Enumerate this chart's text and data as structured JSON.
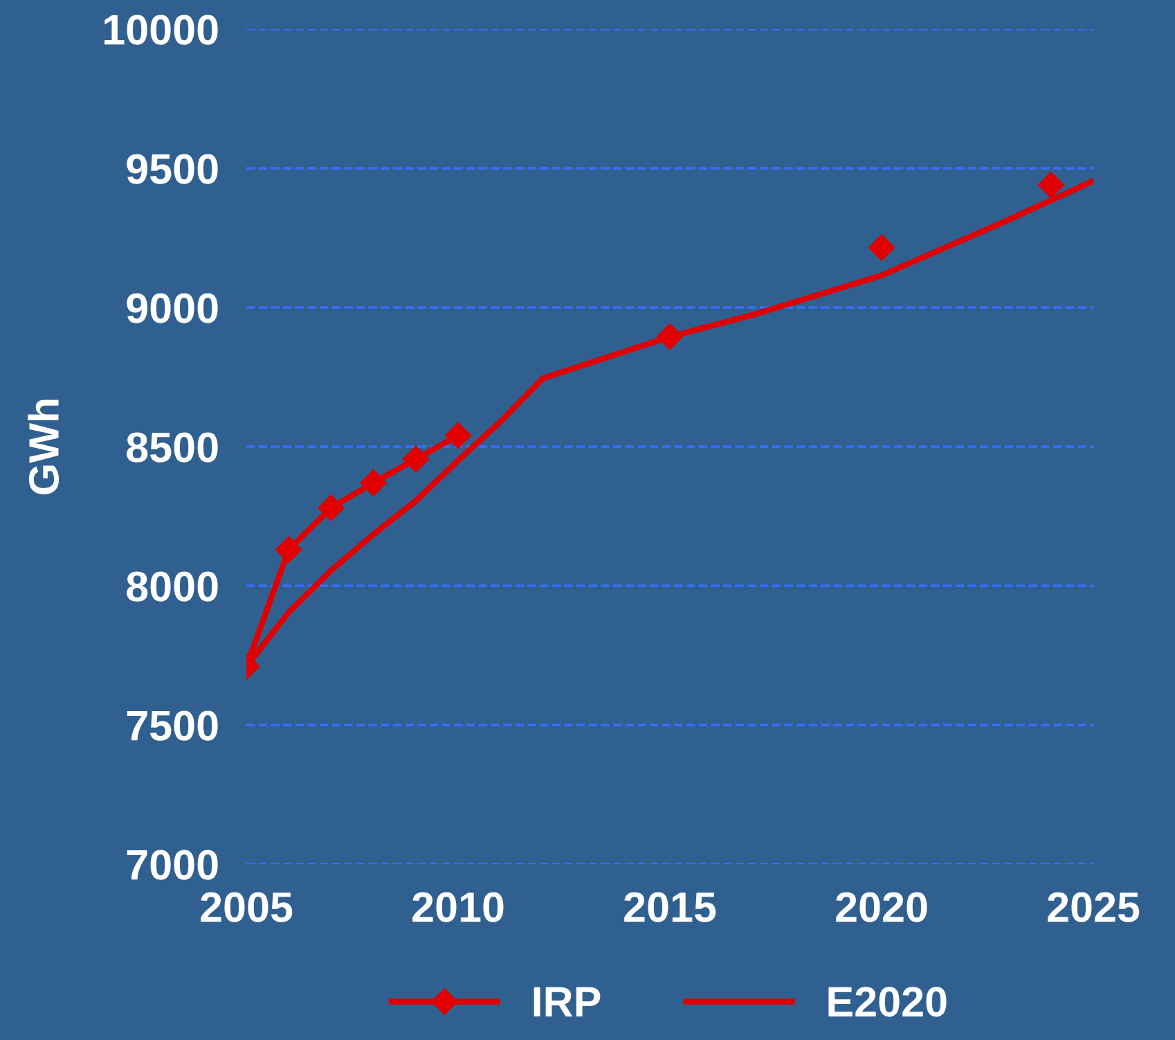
{
  "chart_data": {
    "type": "line",
    "ylabel": "GWh",
    "xlim": [
      2005,
      2025
    ],
    "xticks": [
      2005,
      2010,
      2015,
      2020,
      2025
    ],
    "ylim": [
      7000,
      10000
    ],
    "yticks": [
      7000,
      7500,
      8000,
      8500,
      9000,
      9500,
      10000
    ],
    "grid": "y",
    "legend": "bottom",
    "series": [
      {
        "name": "IRP",
        "color": "#e00000",
        "marker": "diamond",
        "x": [
          2005,
          2006,
          2007,
          2008,
          2009,
          2010
        ],
        "values": [
          7710,
          8130,
          8280,
          8370,
          8455,
          8540
        ]
      },
      {
        "type": "scatter",
        "color": "#e00000",
        "marker": "diamond",
        "x": [
          2015,
          2020,
          2024
        ],
        "values": [
          8895,
          9215,
          9440
        ]
      },
      {
        "name": "E2020",
        "color": "#e00000",
        "marker": "none",
        "x": [
          2005,
          2006,
          2007,
          2008,
          2009,
          2010,
          2011,
          2012,
          2015,
          2017,
          2020,
          2023,
          2025
        ],
        "values": [
          7710,
          7905,
          8055,
          8185,
          8305,
          8450,
          8590,
          8745,
          8895,
          8975,
          9115,
          9315,
          9455
        ]
      }
    ]
  }
}
